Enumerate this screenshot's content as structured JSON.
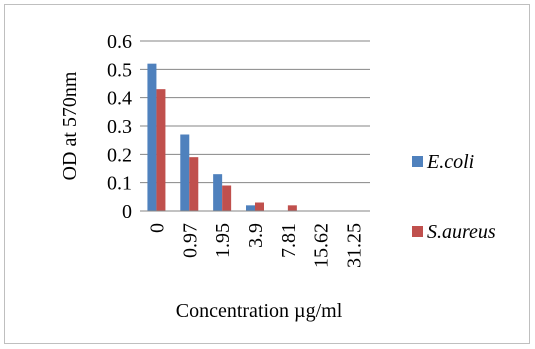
{
  "chart_data": {
    "type": "bar",
    "categories": [
      "0",
      "0.97",
      "1.95",
      "3.9",
      "7.81",
      "15.62",
      "31.25"
    ],
    "series": [
      {
        "name": "E.coli",
        "values": [
          0.52,
          0.27,
          0.13,
          0.02,
          0.0,
          0.0,
          0.0
        ],
        "color": "#4f81bd"
      },
      {
        "name": "S.aureus",
        "values": [
          0.43,
          0.19,
          0.09,
          0.03,
          0.02,
          0.0,
          0.0
        ],
        "color": "#c0504d"
      }
    ],
    "xlabel": "Concentration µg/ml",
    "ylabel": "OD at 570nm",
    "ylim": [
      0,
      0.6
    ],
    "yticks": [
      "0",
      "0.1",
      "0.2",
      "0.3",
      "0.4",
      "0.5",
      "0.6"
    ],
    "grid": true,
    "legend_position": "right"
  }
}
